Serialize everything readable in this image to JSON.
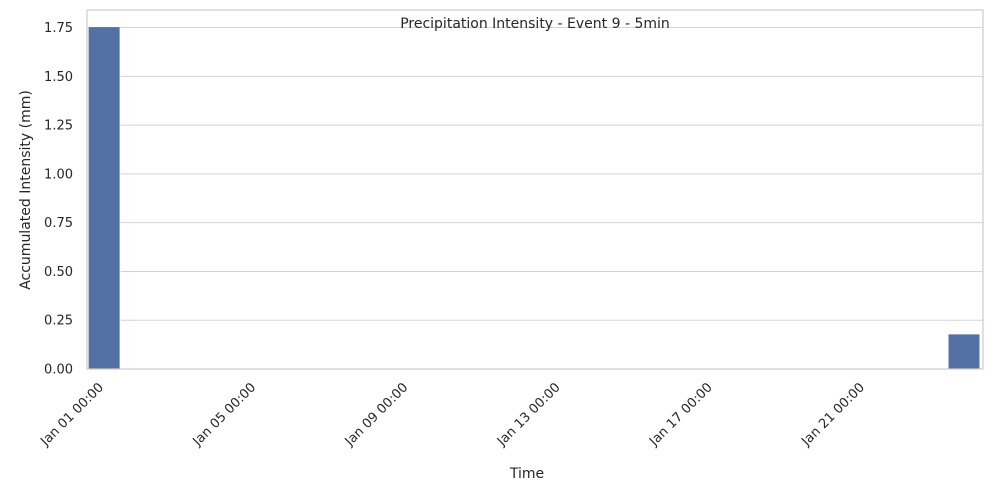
{
  "chart_data": {
    "type": "bar",
    "title": "Precipitation Intensity - Event 9 - 5min",
    "xlabel": "Time",
    "ylabel": "Accumulated Intensity (mm)",
    "x_tick_labels": [
      "Jan 01 00:00",
      "Jan 05 00:00",
      "Jan 09 00:00",
      "Jan 13 00:00",
      "Jan 17 00:00",
      "Jan 21 00:00"
    ],
    "x_ticks_days": [
      1,
      5,
      9,
      13,
      17,
      21
    ],
    "y_ticks": [
      0.0,
      0.25,
      0.5,
      0.75,
      1.0,
      1.25,
      1.5,
      1.75
    ],
    "y_tick_labels": [
      "0.00",
      "0.25",
      "0.50",
      "0.75",
      "1.00",
      "1.25",
      "1.50",
      "1.75"
    ],
    "ylim": [
      0,
      1.84
    ],
    "xlim_days": [
      0.55,
      24.1
    ],
    "bars": [
      {
        "day": 1.0,
        "value": 1.755
      },
      {
        "day": 23.6,
        "value": 0.18
      }
    ],
    "bar_color": "#5471a5",
    "grid": true,
    "legend": "none"
  }
}
